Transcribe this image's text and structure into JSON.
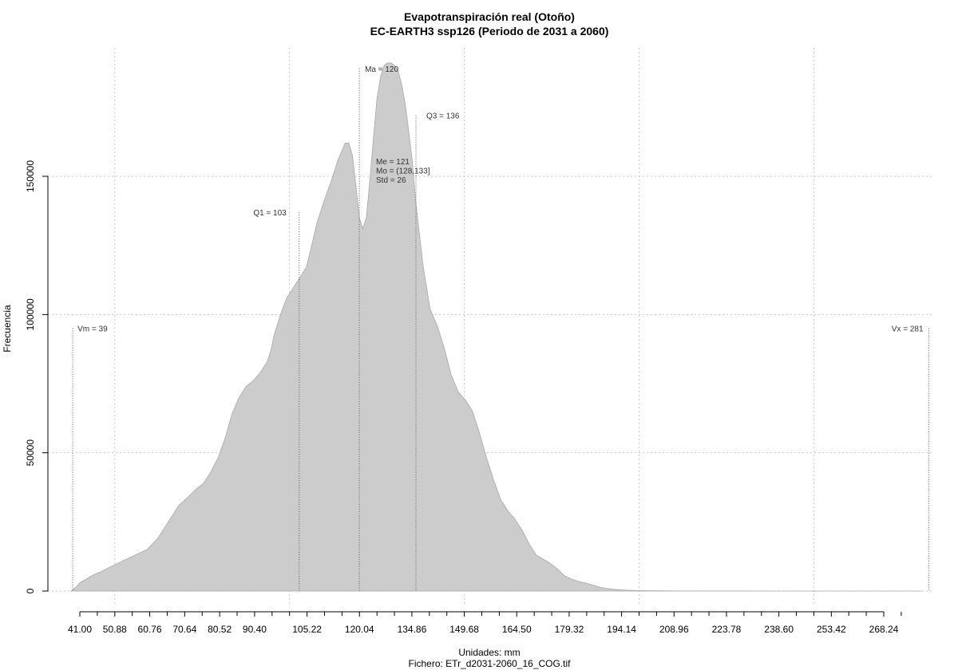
{
  "chart_data": {
    "type": "area",
    "title": "Evapotranspiración real (Otoño)",
    "subtitle": "EC-EARTH3 ssp126 (Periodo de 2031 a 2060)",
    "xlabel": "Unidades: mm",
    "ylabel": "Frecuencia",
    "footer": "Fichero: ETr_d2031-2060_16_COG.tif",
    "xlim": [
      28.5,
      281
    ],
    "ylim": [
      0,
      190000
    ],
    "grid": true,
    "x_ticks": [
      41.0,
      50.88,
      60.76,
      70.64,
      80.52,
      90.4,
      105.22,
      120.04,
      134.86,
      149.68,
      164.5,
      179.32,
      194.14,
      208.96,
      223.78,
      238.6,
      253.42,
      268.24
    ],
    "x_tick_labels": [
      "41.00",
      "50.88",
      "60.76",
      "70.64",
      "80.52",
      "90.40",
      "105.22",
      "120.04",
      "134.86",
      "149.68",
      "164.50",
      "179.32",
      "194.14",
      "208.96",
      "223.78",
      "238.60",
      "253.42",
      "268.24"
    ],
    "x_minor_ticks": [
      45.94,
      55.82,
      65.7,
      75.58,
      85.46,
      95.34,
      100.28,
      110.16,
      115.1,
      125.0,
      129.92,
      139.8,
      144.74,
      154.62,
      159.56,
      169.44,
      174.38,
      184.26,
      189.2,
      199.08,
      204.02,
      213.9,
      218.84,
      228.72,
      233.66,
      243.54,
      248.48,
      258.36,
      263.3,
      273.18
    ],
    "y_ticks": [
      0,
      50000,
      100000,
      150000
    ],
    "y_tick_labels": [
      "0",
      "50000",
      "100000",
      "150000"
    ],
    "x_gridlines": [
      50.88,
      100.28,
      149.68,
      199.08,
      248.48
    ],
    "series": [
      {
        "color": "#cccccc",
        "x": [
          38.5,
          40,
          41,
          43,
          45,
          47,
          50,
          55,
          60,
          63,
          66,
          69,
          72,
          74,
          76,
          78,
          80,
          82,
          84,
          86,
          88,
          90,
          92,
          94,
          95,
          96,
          98,
          99.5,
          101,
          103,
          105,
          106,
          108,
          110,
          112,
          114,
          115,
          116,
          117,
          118,
          119,
          120,
          121,
          122,
          123,
          124,
          125,
          126,
          127,
          128,
          129,
          130,
          131,
          132,
          133,
          134,
          135,
          136,
          137,
          138,
          140,
          142,
          144,
          146,
          148,
          150,
          152,
          154,
          156,
          158,
          160,
          162,
          164,
          166,
          168,
          170,
          172,
          174,
          176,
          178,
          180,
          182,
          185,
          188,
          190,
          193,
          196,
          200,
          205,
          210,
          220,
          240,
          260,
          275,
          279
        ],
        "values": [
          0,
          1500,
          3000,
          4500,
          6000,
          7000,
          9000,
          12000,
          15000,
          19000,
          25000,
          31000,
          34500,
          37000,
          39000,
          43000,
          48000,
          55000,
          64000,
          70000,
          74000,
          76000,
          79000,
          83000,
          87000,
          93000,
          101000,
          106000,
          109000,
          113000,
          117000,
          122000,
          133000,
          141000,
          148000,
          156000,
          159000,
          162000,
          162000,
          158000,
          147000,
          135000,
          131000,
          135000,
          149000,
          164000,
          178000,
          186000,
          190000,
          191000,
          191000,
          190000,
          188000,
          183000,
          176000,
          166000,
          155000,
          140000,
          129000,
          118000,
          102000,
          96000,
          88000,
          78000,
          72000,
          69000,
          65000,
          57000,
          48000,
          40000,
          33000,
          29000,
          26000,
          22000,
          17000,
          13000,
          11500,
          10000,
          8000,
          5500,
          4300,
          3500,
          2500,
          1400,
          900,
          500,
          300,
          150,
          80,
          40,
          20,
          10,
          5,
          0,
          0
        ]
      }
    ],
    "annotations": [
      {
        "label": "Vm = 39",
        "x": 39,
        "y": 95000
      },
      {
        "label": "Q1 = 103",
        "x": 103,
        "y": 137000
      },
      {
        "label": "Ma = 120",
        "x": 120,
        "y": 189000
      },
      {
        "label": "Q3 = 136",
        "x": 136,
        "y": 172000
      },
      {
        "label": "Vx = 281",
        "x": 281,
        "y": 95000
      }
    ],
    "stats": [
      "Me = 121",
      "Mo = (128,133]",
      "Std = 26"
    ]
  }
}
